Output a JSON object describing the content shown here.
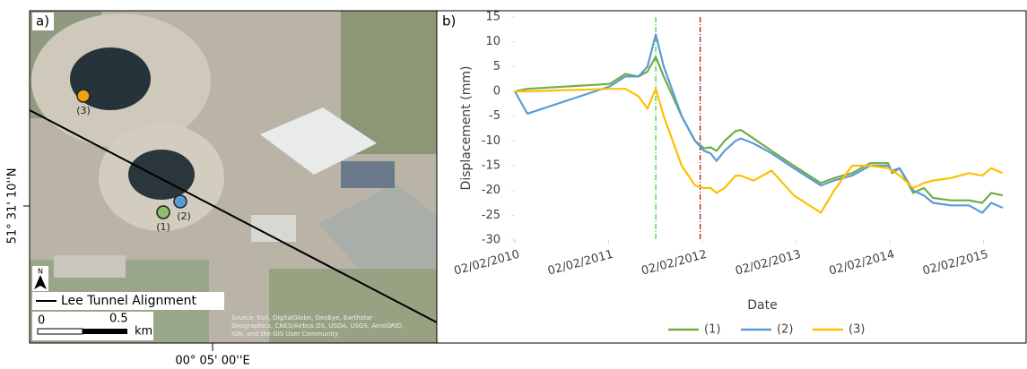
{
  "map": {
    "panel_label": "a)",
    "points": [
      "(1)",
      "(2)",
      "(3)"
    ],
    "legend": "Lee Tunnel Alignment",
    "north": "N",
    "scale": [
      "0",
      "0.5",
      "km"
    ],
    "latitude": "51° 31' 10''N",
    "longitude": "00° 05' 00''E",
    "source": [
      "Source: Esri, DigitalGlobe, GeoEye, Earthstar",
      "Geographics, CNES/Airbus DS, USDA, USGS, AeroGRID,",
      "IGN, and the GIS User Community"
    ]
  },
  "chart_data": {
    "type": "line",
    "panel_label": "b)",
    "y_label": "Displacement (mm)",
    "x_label": "Date",
    "x": [
      "02/02/2010",
      "23/03/2010",
      "07/02/2011",
      "08/04/2011",
      "30/05/2011",
      "04/07/2011",
      "05/08/2011",
      "05/09/2011",
      "14/11/2011",
      "05/01/2012",
      "09/02/2012",
      "05/03/2012",
      "29/03/2012",
      "29/04/2012",
      "11/06/2012",
      "02/07/2012",
      "20/08/2012",
      "29/10/2012",
      "24/01/2013",
      "09/05/2013",
      "30/06/2013",
      "08/09/2013",
      "17/11/2013",
      "26/01/2014",
      "12/02/2014",
      "12/03/2014",
      "04/05/2014",
      "15/06/2014",
      "20/07/2014",
      "28/09/2014",
      "07/12/2014",
      "28/01/2015",
      "04/03/2015",
      "18/04/2015"
    ],
    "series": [
      {
        "name": "(1)",
        "color": "#70ad47",
        "values": [
          0,
          0.5,
          1.5,
          3.5,
          3,
          4,
          7,
          3,
          -5,
          -10,
          -11.5,
          -11.3,
          -12,
          -10,
          -8,
          -7.8,
          -9.5,
          -12,
          -15,
          -18.5,
          -17.5,
          -16.5,
          -14.5,
          -14.5,
          -16.5,
          -15.5,
          -20.5,
          -19.5,
          -21.5,
          -22,
          -22,
          -22.5,
          -20.5,
          -21
        ]
      },
      {
        "name": "(2)",
        "color": "#5b9bd5",
        "values": [
          0,
          -4.5,
          1,
          3,
          3,
          5,
          11.5,
          5,
          -5,
          -10,
          -12,
          -12.5,
          -14,
          -12,
          -10,
          -9.5,
          -10.5,
          -12.5,
          -15.5,
          -19,
          -18,
          -17,
          -15,
          -15,
          -16,
          -15.5,
          -20,
          -21,
          -22.5,
          -23,
          -23,
          -24.5,
          -22.5,
          -23.5
        ]
      },
      {
        "name": "(3)",
        "color": "#ffc000",
        "values": [
          0,
          0,
          0.5,
          0.5,
          -1,
          -3.5,
          0.5,
          -5,
          -15,
          -19,
          -19.5,
          -19.5,
          -20.5,
          -19.5,
          -17,
          -17,
          -18,
          -16,
          -21,
          -24.5,
          -20,
          -15,
          -15,
          -15.5,
          -16,
          -17,
          -19.5,
          -18.5,
          -18,
          -17.5,
          -16.5,
          -17,
          -15.5,
          -16.5
        ]
      }
    ],
    "vlines": [
      {
        "x": "05/08/2011",
        "color": "#33cc33"
      },
      {
        "x": "25/01/2012",
        "color": "#c00000"
      }
    ],
    "xlim": [
      "02/02/2010",
      "18/04/2015"
    ],
    "xticks": [
      "02/02/2010",
      "02/02/2011",
      "02/02/2012",
      "02/02/2013",
      "02/02/2014",
      "02/02/2015"
    ],
    "ylim": [
      -30,
      15
    ],
    "yticks": [
      -30,
      -25,
      -20,
      -15,
      -10,
      -5,
      0,
      5,
      10,
      15
    ]
  }
}
